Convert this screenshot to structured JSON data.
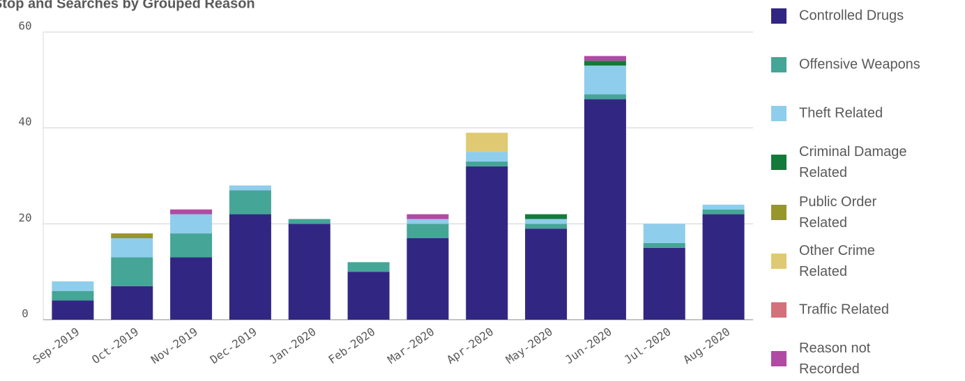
{
  "chart_data": {
    "type": "stacked_bar",
    "title": "Stop and Searches by Grouped Reason",
    "categories": [
      "Sep-2019",
      "Oct-2019",
      "Nov-2019",
      "Dec-2019",
      "Jan-2020",
      "Feb-2020",
      "Mar-2020",
      "Apr-2020",
      "May-2020",
      "Jun-2020",
      "Jul-2020",
      "Aug-2020"
    ],
    "series": [
      {
        "name": "Controlled Drugs",
        "color": "#312783",
        "values": [
          4,
          7,
          13,
          22,
          20,
          10,
          17,
          32,
          19,
          46,
          15,
          22
        ]
      },
      {
        "name": "Offensive Weapons",
        "color": "#45a597",
        "values": [
          2,
          6,
          5,
          5,
          1,
          2,
          3,
          1,
          1,
          1,
          1,
          1
        ]
      },
      {
        "name": "Theft Related",
        "color": "#8fcdec",
        "values": [
          2,
          4,
          4,
          1,
          0,
          0,
          1,
          2,
          1,
          6,
          4,
          1
        ]
      },
      {
        "name": "Criminal Damage Related",
        "color": "#137a3a",
        "values": [
          0,
          0,
          0,
          0,
          0,
          0,
          0,
          0,
          1,
          1,
          0,
          0
        ]
      },
      {
        "name": "Public Order Related",
        "color": "#97962b",
        "values": [
          0,
          1,
          0,
          0,
          0,
          0,
          0,
          0,
          0,
          0,
          0,
          0
        ]
      },
      {
        "name": "Other Crime Related",
        "color": "#dfca73",
        "values": [
          0,
          0,
          0,
          0,
          0,
          0,
          0,
          4,
          0,
          0,
          0,
          0
        ]
      },
      {
        "name": "Traffic Related",
        "color": "#d4707a",
        "values": [
          0,
          0,
          0,
          0,
          0,
          0,
          0,
          0,
          0,
          0,
          0,
          0
        ]
      },
      {
        "name": "Reason not Recorded",
        "color": "#b04aa3",
        "values": [
          0,
          0,
          1,
          0,
          0,
          0,
          1,
          0,
          0,
          1,
          0,
          0
        ]
      }
    ],
    "ylim": [
      0,
      60
    ],
    "yticks": [
      0,
      20,
      40,
      60
    ],
    "grid": true,
    "legend": "right"
  }
}
